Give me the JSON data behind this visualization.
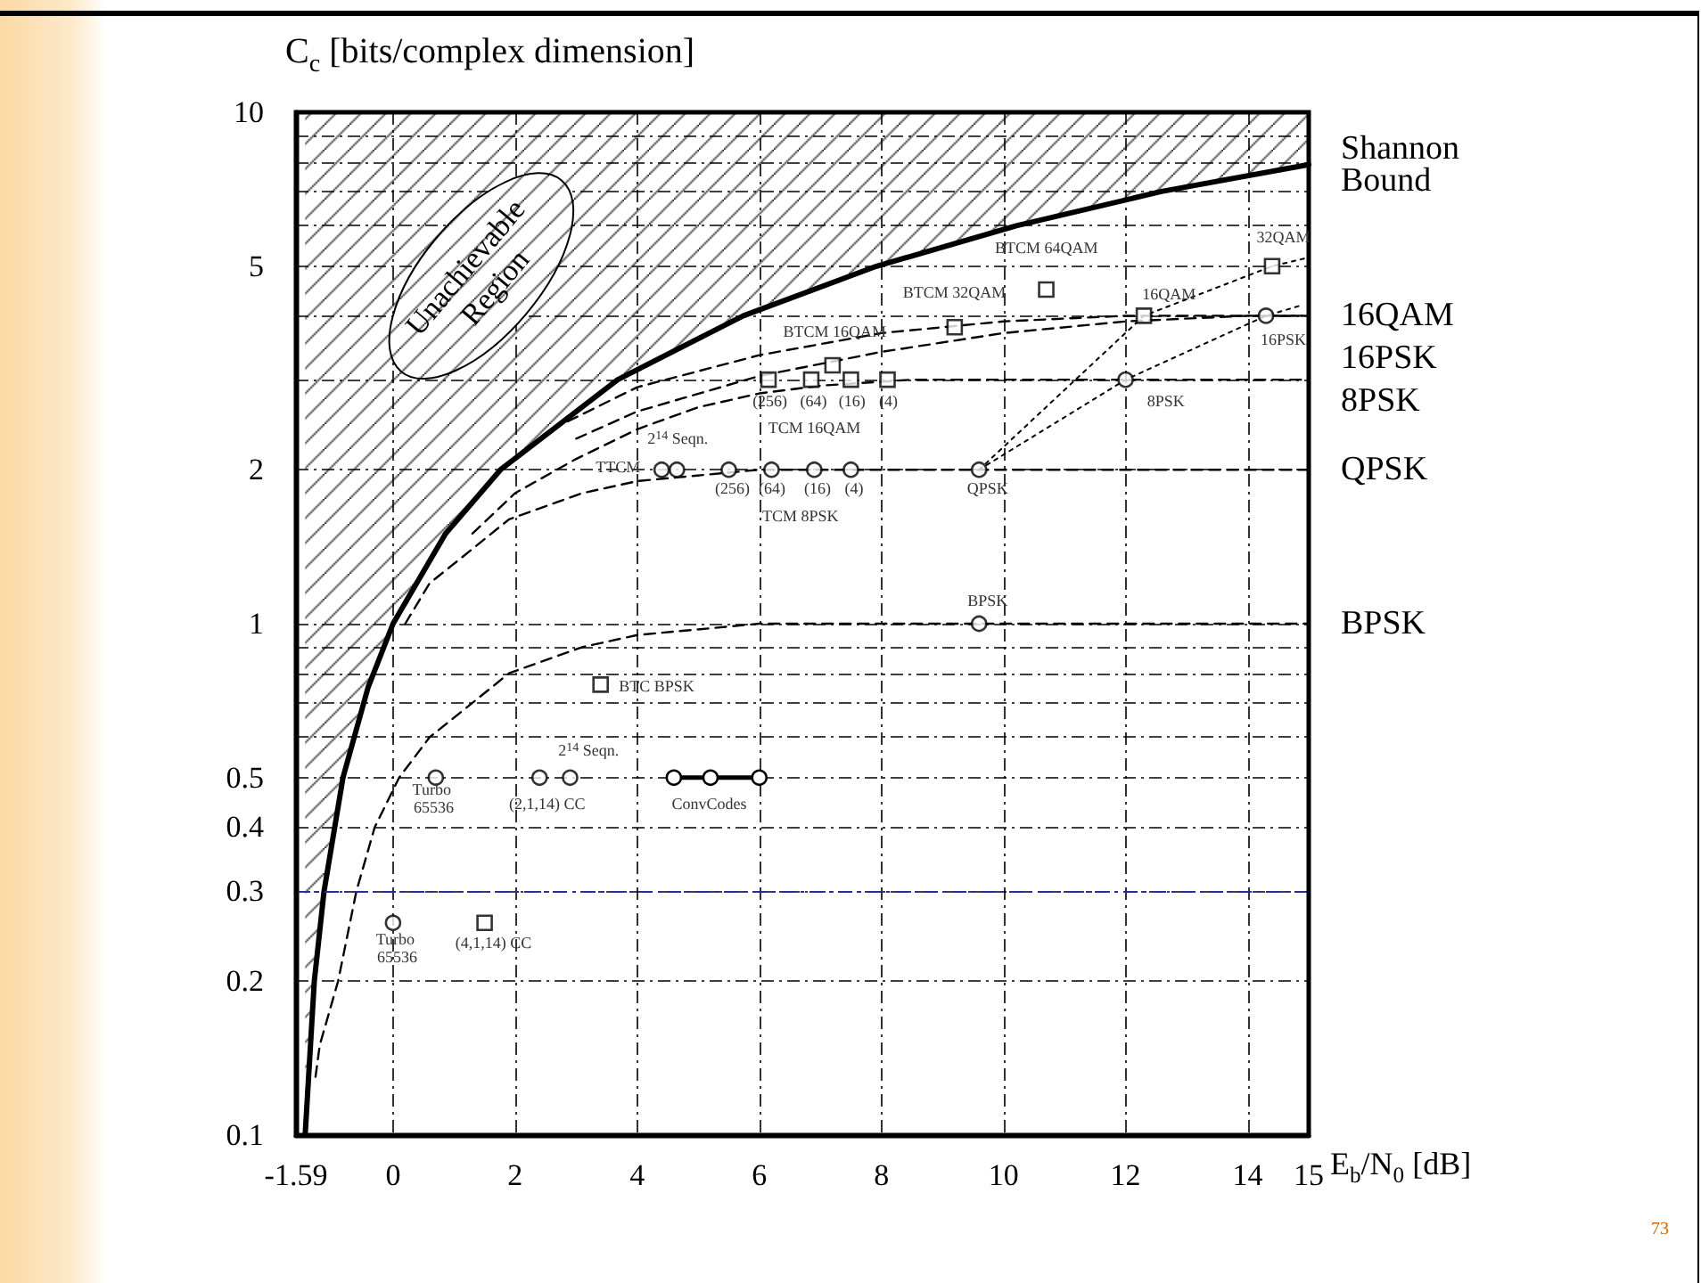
{
  "chart_data": {
    "type": "line",
    "ylabel": "C$_{c}$ [bits/complex dimension]",
    "xlabel": "E$_{b}$/N$_{0}$ [dB]",
    "log": "y",
    "grid": true,
    "legend": false,
    "xlim": [
      -1.59,
      15
    ],
    "xticks": [
      -1.59,
      0,
      2,
      4,
      6,
      8,
      10,
      12,
      14,
      15
    ],
    "ylim": [
      0.1,
      10
    ],
    "yticks": [
      0.1,
      0.2,
      0.3,
      0.4,
      0.5,
      {
        "value": 0.6,
        "label": null
      },
      {
        "value": 0.7,
        "label": null
      },
      {
        "value": 0.8,
        "label": null
      },
      {
        "value": 0.9,
        "label": null
      },
      1,
      2,
      {
        "value": 3,
        "label": null
      },
      {
        "value": 4,
        "label": null
      },
      5,
      {
        "value": 6,
        "label": null
      },
      {
        "value": 7,
        "label": null
      },
      {
        "value": 8,
        "label": null
      },
      {
        "value": 9,
        "label": null
      },
      10
    ],
    "ref_lines": [
      {
        "axis": "y",
        "value": 0.3,
        "color": "#2a2a9a",
        "line_style": "dashed"
      }
    ],
    "series": [
      {
        "name": "Shannon Bound",
        "color": "#000000",
        "marker": "none",
        "line_style": "solid",
        "x": [
          -1.44,
          -1.29,
          -1.13,
          -0.82,
          -0.41,
          0,
          0.86,
          1.76,
          3.68,
          5.74,
          7.92,
          10.21,
          12.59,
          15
        ],
        "values": [
          0.1,
          0.2,
          0.3,
          0.5,
          0.75,
          1,
          1.5,
          2,
          3,
          4,
          5,
          6,
          7,
          7.9
        ],
        "lower": [
          0.1,
          0.2,
          0.3,
          0.5,
          0.75,
          1,
          1.5,
          2,
          3,
          4,
          5,
          6,
          7,
          7.9
        ],
        "upper": [
          10,
          10,
          10,
          10,
          10,
          10,
          10,
          10,
          10,
          10,
          10,
          10,
          10,
          10
        ]
      },
      {
        "name": "BPSK",
        "color": "#000000",
        "marker": "none",
        "line_style": "dashed",
        "x": [
          -1.27,
          -1.2,
          -0.9,
          -0.6,
          -0.3,
          0.1,
          0.6,
          1.3,
          1.9,
          3.1,
          4,
          6,
          15
        ],
        "values": [
          0.13,
          0.15,
          0.2,
          0.3,
          0.4,
          0.5,
          0.6,
          0.7,
          0.8,
          0.9,
          0.95,
          1,
          1
        ]
      },
      {
        "name": "QPSK",
        "color": "#000000",
        "marker": "none",
        "line_style": "dashed",
        "x": [
          0.2,
          0.6,
          1.3,
          1.9,
          3.1,
          4,
          6,
          15
        ],
        "values": [
          1,
          1.2,
          1.4,
          1.6,
          1.8,
          1.9,
          2,
          2
        ]
      },
      {
        "name": "8PSK",
        "color": "#000000",
        "marker": "none",
        "line_style": "dashed",
        "x": [
          1.3,
          2,
          3,
          4,
          5,
          6,
          7,
          8.5,
          15
        ],
        "values": [
          1.5,
          1.8,
          2.1,
          2.4,
          2.65,
          2.82,
          2.92,
          3,
          3
        ]
      },
      {
        "name": "16QAM",
        "color": "#000000",
        "marker": "none",
        "line_style": "dashed",
        "x": [
          2.6,
          4,
          6,
          8,
          10,
          12,
          15
        ],
        "values": [
          2.4,
          2.9,
          3.35,
          3.7,
          3.9,
          4,
          4
        ]
      },
      {
        "name": "16PSK",
        "color": "#000000",
        "marker": "none",
        "line_style": "dashed",
        "x": [
          3,
          4,
          6,
          8,
          10,
          12,
          14,
          15
        ],
        "values": [
          2.3,
          2.6,
          3.05,
          3.4,
          3.7,
          3.9,
          4,
          4
        ]
      },
      {
        "type": "line",
        "color": "#000000",
        "marker": "none",
        "line_style": "dotted",
        "x": [
          9.6,
          12.3,
          14.4,
          15
        ],
        "values": [
          2,
          4,
          5,
          5.2
        ]
      },
      {
        "type": "line",
        "color": "#000000",
        "marker": "none",
        "line_style": "dotted",
        "x": [
          9.6,
          12,
          14.3,
          14.9
        ],
        "values": [
          2,
          3,
          4,
          4.2
        ]
      },
      {
        "type": "line",
        "color": "#000000",
        "marker": "circle",
        "line_style": "solid",
        "x": [
          4.6,
          5.2,
          6.0
        ],
        "values": [
          0.5,
          0.5,
          0.5
        ]
      },
      {
        "type": "scatter",
        "color": "#000000",
        "marker": "circle",
        "x": [
          0.7,
          2.4,
          2.9,
          0,
          9.6,
          9.6,
          4.4,
          4.65,
          5.5,
          6.2,
          6.9,
          7.5,
          12,
          14.3
        ],
        "values": [
          0.5,
          0.5,
          0.5,
          0.26,
          1,
          2,
          2,
          2,
          2,
          2,
          2,
          2,
          3,
          4
        ]
      },
      {
        "type": "scatter",
        "color": "#000000",
        "marker": "square",
        "x": [
          1.5,
          3.4,
          6.15,
          6.85,
          7.5,
          8.1,
          7.2,
          9.2,
          10.7,
          12.3,
          14.4
        ],
        "values": [
          0.26,
          0.76,
          3,
          3,
          3,
          3,
          3.2,
          3.8,
          4.5,
          4,
          5
        ]
      }
    ],
    "annotations": [
      "Unachievable Region",
      "BTCM 64QAM",
      "BTCM 32QAM",
      "BTCM 16QAM",
      "16QAM",
      "32QAM",
      "16PSK",
      "8PSK",
      "QPSK",
      "BPSK",
      "TCM 16QAM",
      "TCM 8PSK",
      "(256)",
      "(64)",
      "(16)",
      "(4)",
      "(256)",
      "(64)",
      "(16)",
      "(4)",
      "2$^{14}$ Seqn.",
      "TTCM",
      "BTC BPSK",
      "2$^{14}$ Seqn.",
      "Turbo 65536",
      "(2,1,14) CC",
      "ConvCodes",
      "Turbo 65536",
      "(4,1,14) CC",
      "73"
    ]
  }
}
